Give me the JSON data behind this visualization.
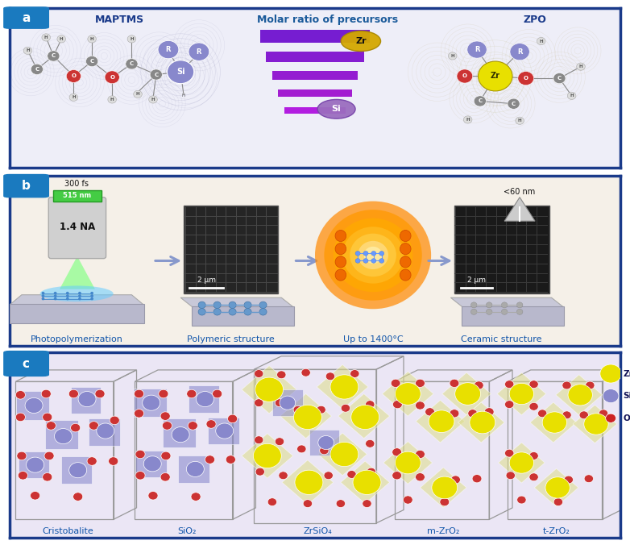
{
  "fig_width": 7.82,
  "fig_height": 6.81,
  "dpi": 100,
  "bg_color": "#ffffff",
  "panel_a": {
    "label": "a",
    "bg": "#eeeef8",
    "border": "#1a3a8a",
    "title_left": "MAPTMS",
    "title_center": "Molar ratio of precursors",
    "title_right": "ZPO",
    "molar_labels": [
      "Zr",
      "Si"
    ],
    "molar_colors_zr": "#d4a800",
    "molar_colors_si": "#9b6dbf"
  },
  "panel_b": {
    "label": "b",
    "bg": "#f5f0e8",
    "border": "#1a3a8a",
    "labels": [
      "Photopolymerization",
      "Polymeric structure",
      "Up to 1400°C",
      "Ceramic structure"
    ],
    "laser_params": [
      "300 fs",
      "515 nm",
      "1.4 NA"
    ],
    "scale_bar": "2 μm",
    "tip_size": "<60 nm"
  },
  "panel_c": {
    "label": "c",
    "bg": "#ebe6f5",
    "border": "#1a3a8a",
    "labels": [
      "Cristobalite",
      "SiO₂",
      "ZrSiO₄",
      "m-ZrO₂",
      "t-ZrO₂"
    ],
    "legend_items": [
      "Zr-",
      "Si-",
      "O-"
    ],
    "legend_colors": [
      "#e8e000",
      "#8888cc",
      "#cc2222"
    ],
    "zr_color": "#e8e000",
    "si_color": "#8888cc",
    "o_color": "#cc3333",
    "purple_face": "#8888cc",
    "yellow_face": "#dddd88"
  },
  "arrow_color": "#8899cc",
  "label_color": "#1155aa",
  "panel_label_bg": "#1a7abf",
  "panel_label_fg": "#ffffff"
}
